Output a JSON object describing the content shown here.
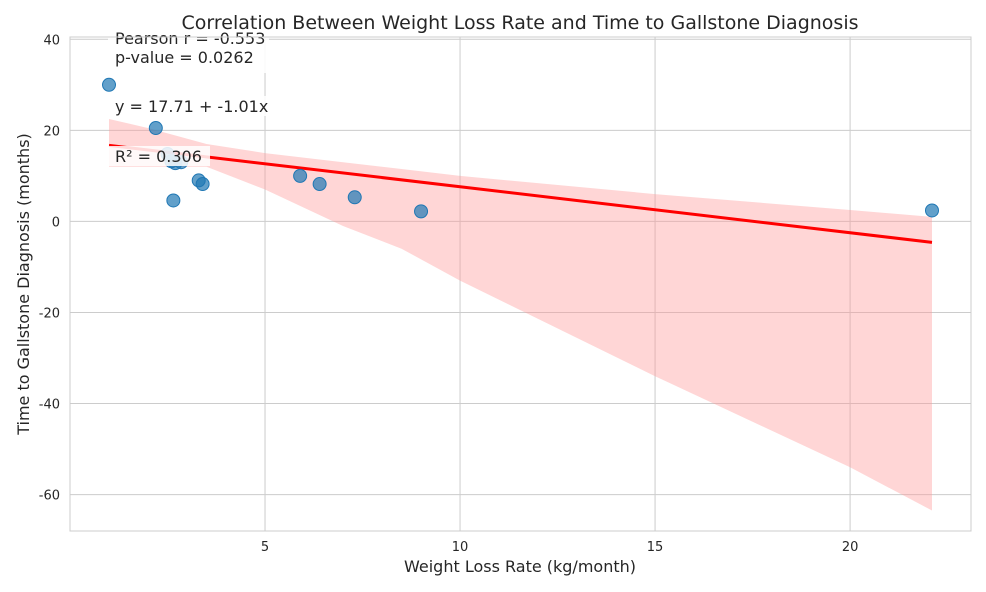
{
  "chart_data": {
    "type": "scatter",
    "title": "Correlation Between Weight Loss Rate and Time to Gallstone Diagnosis",
    "xlabel": "Weight Loss Rate (kg/month)",
    "ylabel": "Time to Gallstone Diagnosis (months)",
    "xlim": [
      0,
      23.1
    ],
    "ylim": [
      -68,
      40.5
    ],
    "xticks": [
      5,
      10,
      15,
      20
    ],
    "yticks": [
      40,
      20,
      0,
      -20,
      -40,
      -60
    ],
    "grid": true,
    "points": [
      {
        "x": 1.0,
        "y": 30.0
      },
      {
        "x": 2.2,
        "y": 20.5
      },
      {
        "x": 2.5,
        "y": 14.8
      },
      {
        "x": 2.6,
        "y": 13.2
      },
      {
        "x": 2.7,
        "y": 12.8
      },
      {
        "x": 2.85,
        "y": 13.0
      },
      {
        "x": 2.65,
        "y": 4.6
      },
      {
        "x": 3.3,
        "y": 9.0
      },
      {
        "x": 3.4,
        "y": 8.2
      },
      {
        "x": 5.9,
        "y": 10.0
      },
      {
        "x": 6.4,
        "y": 8.2
      },
      {
        "x": 7.3,
        "y": 5.3
      },
      {
        "x": 9.0,
        "y": 2.2
      },
      {
        "x": 22.1,
        "y": 2.4
      }
    ],
    "regression": {
      "intercept": 17.71,
      "slope": -1.01,
      "x_range": [
        1.0,
        22.1
      ],
      "ci_band": [
        {
          "x": 1.0,
          "lower": 12,
          "upper": 22.5
        },
        {
          "x": 2.0,
          "lower": 12,
          "upper": 20.5
        },
        {
          "x": 3.5,
          "lower": 12,
          "upper": 17
        },
        {
          "x": 5.0,
          "lower": 7,
          "upper": 15
        },
        {
          "x": 7.0,
          "lower": -1,
          "upper": 13
        },
        {
          "x": 8.5,
          "lower": -6,
          "upper": 11.5
        },
        {
          "x": 10.0,
          "lower": -13,
          "upper": 10
        },
        {
          "x": 15.0,
          "lower": -34,
          "upper": 6
        },
        {
          "x": 20.0,
          "lower": -54,
          "upper": 2.5
        },
        {
          "x": 22.1,
          "lower": -63.5,
          "upper": 1
        }
      ]
    },
    "annotations": {
      "pearson": "Pearson r = -0.553",
      "pvalue": "p-value = 0.0262",
      "equation": "y = 17.71 + -1.01x",
      "r2": "R² = 0.306"
    },
    "colors": {
      "points": "#1f77b4",
      "line": "#ff0000",
      "band": "#ff9999"
    }
  }
}
